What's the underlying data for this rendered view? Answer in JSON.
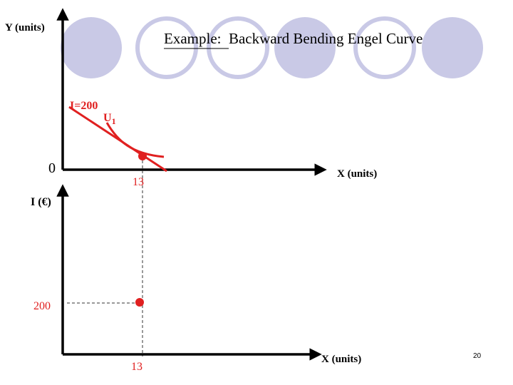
{
  "slide": {
    "title_prefix": "Example:",
    "title_rest": "Backward Bending Engel Curve",
    "page_number": "20"
  },
  "top_graph": {
    "y_axis_label": "Y (units)",
    "x_axis_label": "X (units)",
    "origin_label": "0",
    "budget_label": "I=200",
    "indifference_label": "U",
    "indifference_subscript": "1",
    "x_tick_label": "13"
  },
  "bottom_graph": {
    "y_axis_label": "I (€)",
    "x_axis_label": "X (units)",
    "y_tick_label": "200",
    "x_tick_label": "13"
  },
  "colors": {
    "curve": "#e02020",
    "decor_circle": "#c9c9e6",
    "axis": "#000000"
  }
}
